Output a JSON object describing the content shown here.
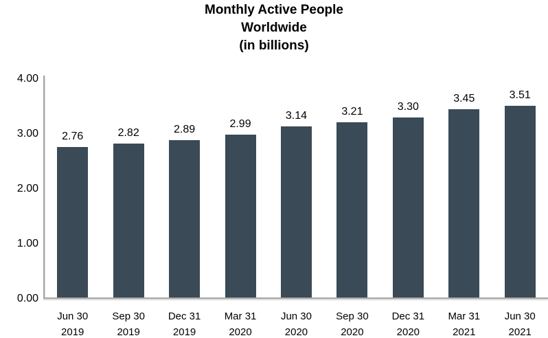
{
  "title_lines": [
    "Monthly Active People",
    "Worldwide",
    "(in billions)"
  ],
  "colors": {
    "bar": "#3A4A56",
    "axis_line": "#A6A6A6",
    "text": "#000000"
  },
  "y_axis": {
    "tick_labels": [
      "4.00",
      "3.00",
      "2.00",
      "1.00",
      "0.00"
    ]
  },
  "chart_data": {
    "type": "bar",
    "title": "Monthly Active People Worldwide (in billions)",
    "categories": [
      "Jun 30 2019",
      "Sep 30 2019",
      "Dec 31 2019",
      "Mar 31 2020",
      "Jun 30 2020",
      "Sep 30 2020",
      "Dec 31 2020",
      "Mar 31 2021",
      "Jun 30 2021"
    ],
    "category_lines": [
      [
        "Jun 30",
        "2019"
      ],
      [
        "Sep 30",
        "2019"
      ],
      [
        "Dec 31",
        "2019"
      ],
      [
        "Mar 31",
        "2020"
      ],
      [
        "Jun 30",
        "2020"
      ],
      [
        "Sep 30",
        "2020"
      ],
      [
        "Dec 31",
        "2020"
      ],
      [
        "Mar 31",
        "2021"
      ],
      [
        "Jun 30",
        "2021"
      ]
    ],
    "values": [
      2.76,
      2.82,
      2.89,
      2.99,
      3.14,
      3.21,
      3.3,
      3.45,
      3.51
    ],
    "data_labels": [
      "2.76",
      "2.82",
      "2.89",
      "2.99",
      "3.14",
      "3.21",
      "3.30",
      "3.45",
      "3.51"
    ],
    "xlabel": "",
    "ylabel": "",
    "ylim": [
      0,
      4
    ],
    "y_tick_step": 1.0,
    "grid": false,
    "legend": false,
    "data_labels_position": "above-bar"
  }
}
